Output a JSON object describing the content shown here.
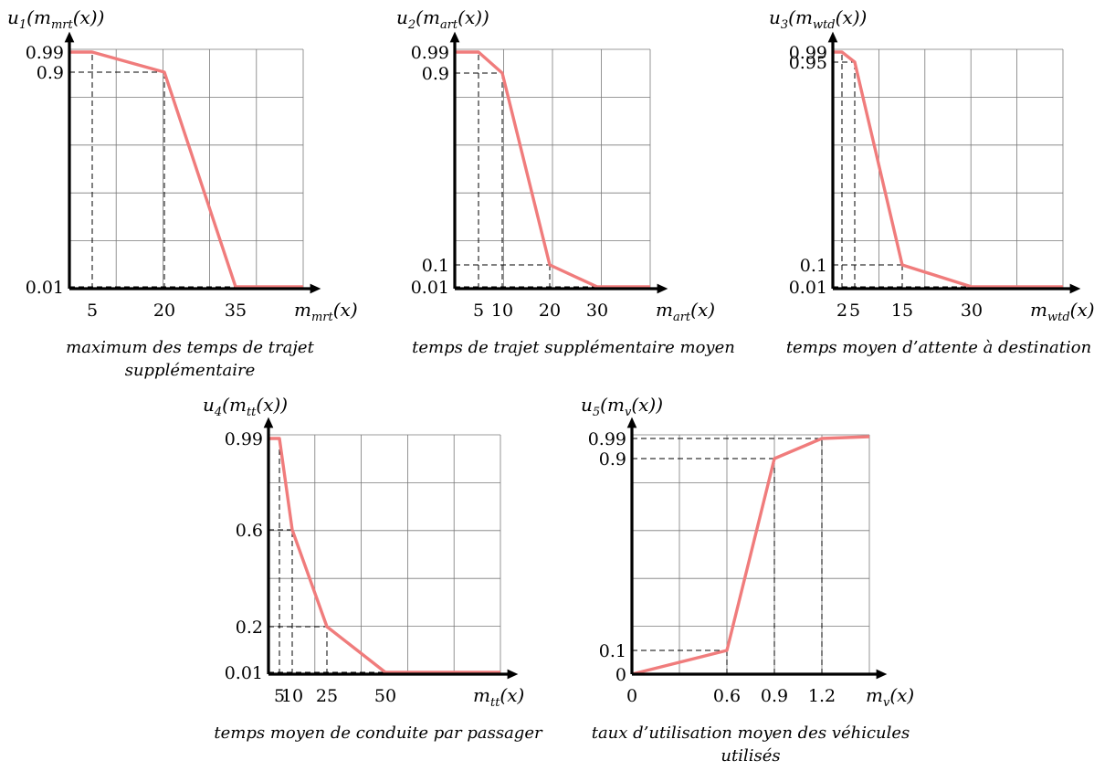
{
  "chart_data": [
    {
      "type": "line",
      "ylabel": {
        "base": "u",
        "index": "1",
        "arg": "m",
        "arg_sub": "mrt",
        "suffix": "(x))"
      },
      "xlabel": {
        "base": "m",
        "sub": "mrt",
        "suffix": "(x)"
      },
      "caption": [
        "maximum des temps de trajet",
        "supplémentaire"
      ],
      "x_ticks": [
        5,
        20,
        35
      ],
      "y_ticks": [
        "0.99",
        "0.9",
        "0.01"
      ],
      "x": [
        0,
        5,
        20,
        35,
        45
      ],
      "y": [
        0.99,
        0.99,
        0.9,
        0.01,
        0.01
      ]
    },
    {
      "type": "line",
      "ylabel": {
        "base": "u",
        "index": "2",
        "arg": "m",
        "arg_sub": "art",
        "suffix": "(x))"
      },
      "xlabel": {
        "base": "m",
        "sub": "art",
        "suffix": "(x)"
      },
      "caption": [
        "temps de trajet supplémentaire moyen"
      ],
      "x_ticks": [
        5,
        10,
        20,
        30
      ],
      "y_ticks": [
        "0.99",
        "0.9",
        "0.1",
        "0.01"
      ],
      "x": [
        0,
        5,
        10,
        20,
        30,
        45
      ],
      "y": [
        0.99,
        0.99,
        0.9,
        0.1,
        0.01,
        0.01
      ]
    },
    {
      "type": "line",
      "ylabel": {
        "base": "u",
        "index": "3",
        "arg": "m",
        "arg_sub": "wtd",
        "suffix": "(x))"
      },
      "xlabel": {
        "base": "m",
        "sub": "wtd",
        "suffix": "(x)"
      },
      "caption": [
        "temps moyen d’attente à destination"
      ],
      "x_ticks": [
        2,
        5,
        15,
        30
      ],
      "y_ticks": [
        "0.99",
        "0.95",
        "0.1",
        "0.01"
      ],
      "x": [
        0,
        2,
        5,
        15,
        30,
        45
      ],
      "y": [
        0.99,
        0.99,
        0.95,
        0.1,
        0.01,
        0.01
      ]
    },
    {
      "type": "line",
      "ylabel": {
        "base": "u",
        "index": "4",
        "arg": "m",
        "arg_sub": "tt",
        "suffix": "(x))"
      },
      "xlabel": {
        "base": "m",
        "sub": "tt",
        "suffix": "(x)"
      },
      "caption": [
        "temps moyen de conduite par passager"
      ],
      "x_ticks": [
        5,
        10,
        25,
        50
      ],
      "y_ticks": [
        "0.99",
        "0.6",
        "0.2",
        "0.01"
      ],
      "x": [
        0,
        5,
        10,
        25,
        50,
        90
      ],
      "y": [
        0.99,
        0.99,
        0.6,
        0.2,
        0.01,
        0.01
      ]
    },
    {
      "type": "line",
      "ylabel": {
        "base": "u",
        "index": "5",
        "arg": "m",
        "arg_sub": "v",
        "suffix": "(x))"
      },
      "xlabel": {
        "base": "m",
        "sub": "v",
        "suffix": "(x)"
      },
      "caption": [
        "taux d’utilisation moyen des véhicules",
        "utilisés"
      ],
      "x_ticks": [
        "0",
        "0.6",
        "0.9",
        "1.2"
      ],
      "y_ticks": [
        "0.99",
        "0.9",
        "0.1",
        "0"
      ],
      "x": [
        0,
        0.6,
        0.9,
        1.2,
        1.5
      ],
      "y": [
        0,
        0.1,
        0.9,
        0.99,
        1.0
      ]
    }
  ],
  "style": {
    "curve_color": "#f07c7c",
    "grid_color": "#7a7a7a",
    "axis_color": "#000000"
  }
}
